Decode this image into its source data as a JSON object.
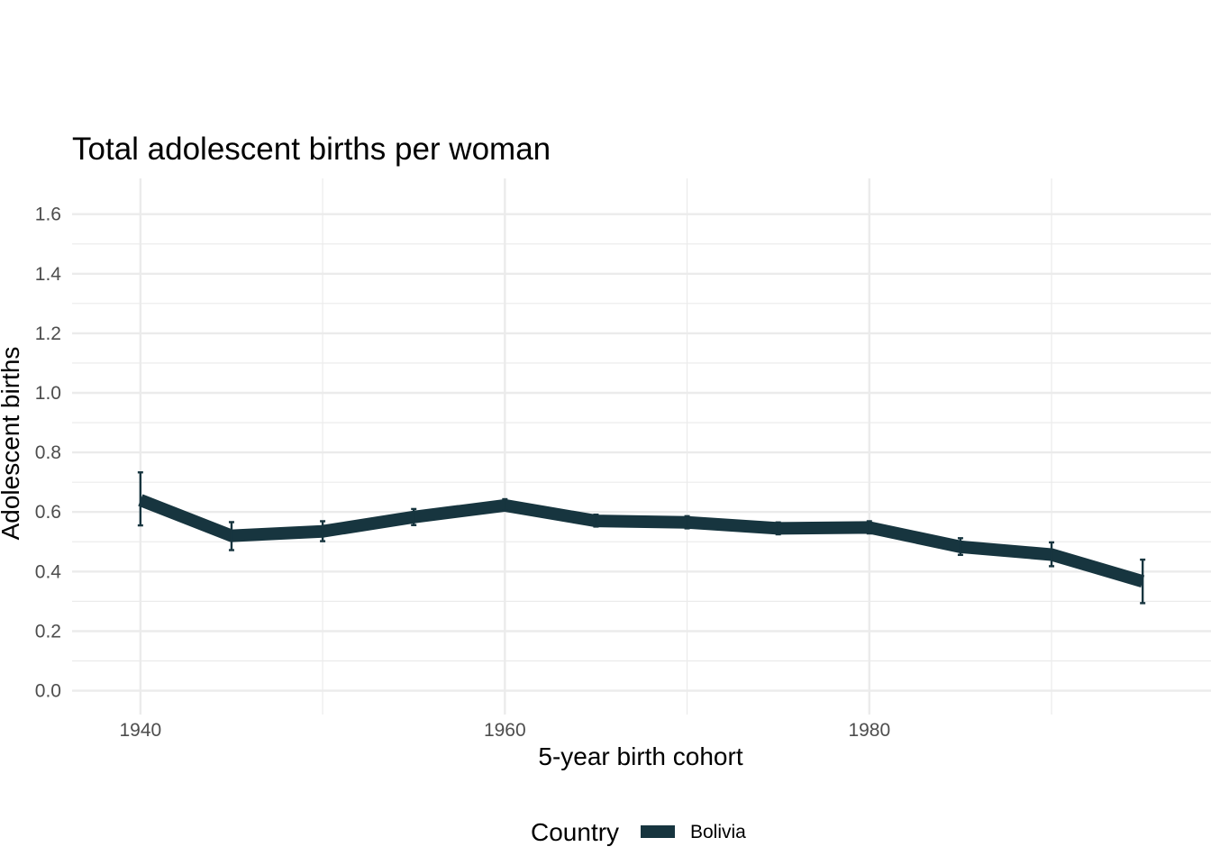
{
  "chart_data": {
    "type": "line",
    "title": "Total adolescent births per woman",
    "xlabel": "5-year birth cohort",
    "ylabel": "Adolescent births",
    "xlim": [
      1936.25,
      1998.75
    ],
    "ylim": [
      -0.08,
      1.72
    ],
    "x_ticks": [
      1940,
      1960,
      1980
    ],
    "x_tick_labels": [
      "1940",
      "1960",
      "1980"
    ],
    "x_minor_ticks": [
      1950,
      1970,
      1990
    ],
    "y_ticks": [
      0.0,
      0.2,
      0.4,
      0.6,
      0.8,
      1.0,
      1.2,
      1.4,
      1.6
    ],
    "y_tick_labels": [
      "0.0",
      "0.2",
      "0.4",
      "0.6",
      "0.8",
      "1.0",
      "1.2",
      "1.4",
      "1.6"
    ],
    "y_minor_ticks": [
      0.1,
      0.3,
      0.5,
      0.7,
      0.9,
      1.1,
      1.3,
      1.5
    ],
    "legend": {
      "title": "Country",
      "position": "bottom"
    },
    "series": [
      {
        "name": "Bolivia",
        "color": "#17353f",
        "x": [
          1940,
          1945,
          1950,
          1955,
          1960,
          1965,
          1970,
          1975,
          1980,
          1985,
          1990,
          1995
        ],
        "values": [
          0.64,
          0.52,
          0.535,
          0.583,
          0.622,
          0.57,
          0.565,
          0.545,
          0.548,
          0.483,
          0.457,
          0.367
        ],
        "lower": [
          0.555,
          0.472,
          0.502,
          0.556,
          0.606,
          0.551,
          0.545,
          0.525,
          0.528,
          0.456,
          0.418,
          0.294
        ],
        "upper": [
          0.733,
          0.566,
          0.569,
          0.61,
          0.643,
          0.591,
          0.586,
          0.565,
          0.569,
          0.512,
          0.498,
          0.44
        ]
      }
    ]
  }
}
